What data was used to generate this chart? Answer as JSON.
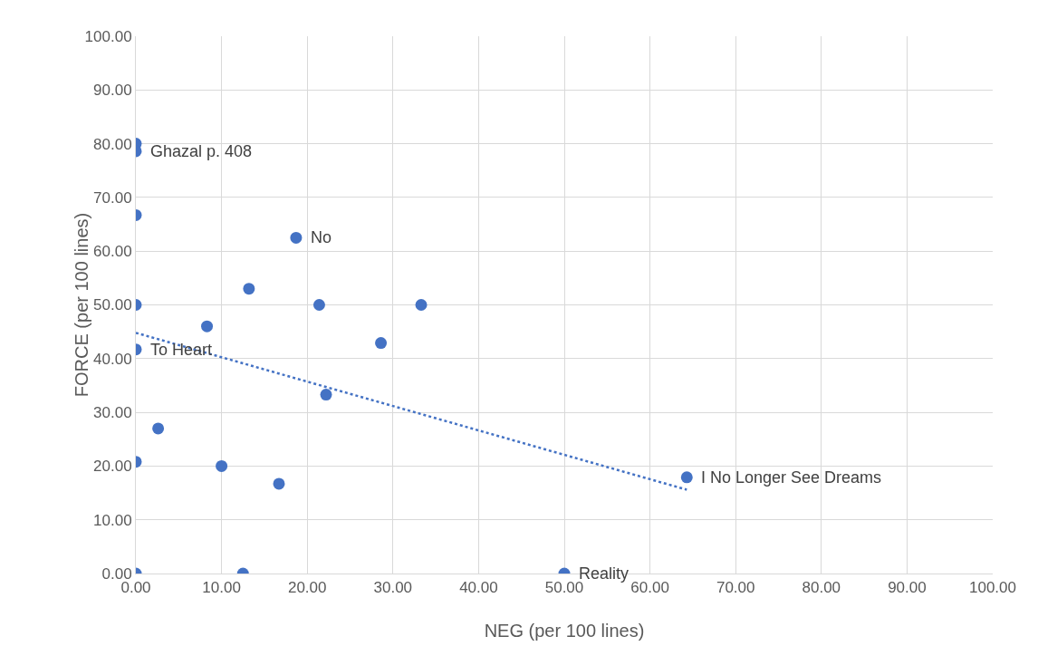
{
  "chart_data": {
    "type": "scatter",
    "xlabel": "NEG (per 100 lines)",
    "ylabel": "FORCE (per 100 lines)",
    "xlim": [
      0,
      100
    ],
    "ylim": [
      0,
      100
    ],
    "xticks": [
      {
        "value": 0,
        "label": "0.00"
      },
      {
        "value": 10,
        "label": "10.00"
      },
      {
        "value": 20,
        "label": "20.00"
      },
      {
        "value": 30,
        "label": "30.00"
      },
      {
        "value": 40,
        "label": "40.00"
      },
      {
        "value": 50,
        "label": "50.00"
      },
      {
        "value": 60,
        "label": "60.00"
      },
      {
        "value": 70,
        "label": "70.00"
      },
      {
        "value": 80,
        "label": "80.00"
      },
      {
        "value": 90,
        "label": "90.00"
      },
      {
        "value": 100,
        "label": "100.00"
      }
    ],
    "yticks": [
      {
        "value": 0,
        "label": "0.00"
      },
      {
        "value": 10,
        "label": "10.00"
      },
      {
        "value": 20,
        "label": "20.00"
      },
      {
        "value": 30,
        "label": "30.00"
      },
      {
        "value": 40,
        "label": "40.00"
      },
      {
        "value": 50,
        "label": "50.00"
      },
      {
        "value": 60,
        "label": "60.00"
      },
      {
        "value": 70,
        "label": "70.00"
      },
      {
        "value": 80,
        "label": "80.00"
      },
      {
        "value": 90,
        "label": "90.00"
      },
      {
        "value": 100,
        "label": "100.00"
      }
    ],
    "grid": true,
    "legend": false,
    "series": [
      {
        "marker": "circle",
        "color": "#4472c4",
        "x": [
          0,
          0,
          0,
          18.7,
          13.2,
          0,
          21.4,
          33.3,
          8.3,
          28.6,
          0,
          22.2,
          2.6,
          0,
          10,
          16.7,
          64.3,
          0,
          12.5,
          50
        ],
        "values": [
          80,
          78.6,
          66.7,
          62.5,
          53,
          50,
          50,
          50,
          46,
          42.9,
          41.7,
          33.3,
          27,
          20.8,
          20,
          16.7,
          17.9,
          0,
          0,
          0
        ]
      },
      {
        "type": "line",
        "marker": "none",
        "color": "#4472c4",
        "line_style": "dotted",
        "x": [
          0,
          64.3
        ],
        "values": [
          44.8,
          15.6
        ]
      }
    ],
    "annotations": [
      {
        "text": "Ghazal p. 408",
        "x": 0,
        "y": 78.6
      },
      {
        "text": "No",
        "x": 18.7,
        "y": 62.5
      },
      {
        "text": "To Heart",
        "x": 0,
        "y": 41.7
      },
      {
        "text": "I No Longer See Dreams",
        "x": 64.3,
        "y": 17.9
      },
      {
        "text": "Reality",
        "x": 50,
        "y": 0
      }
    ]
  }
}
